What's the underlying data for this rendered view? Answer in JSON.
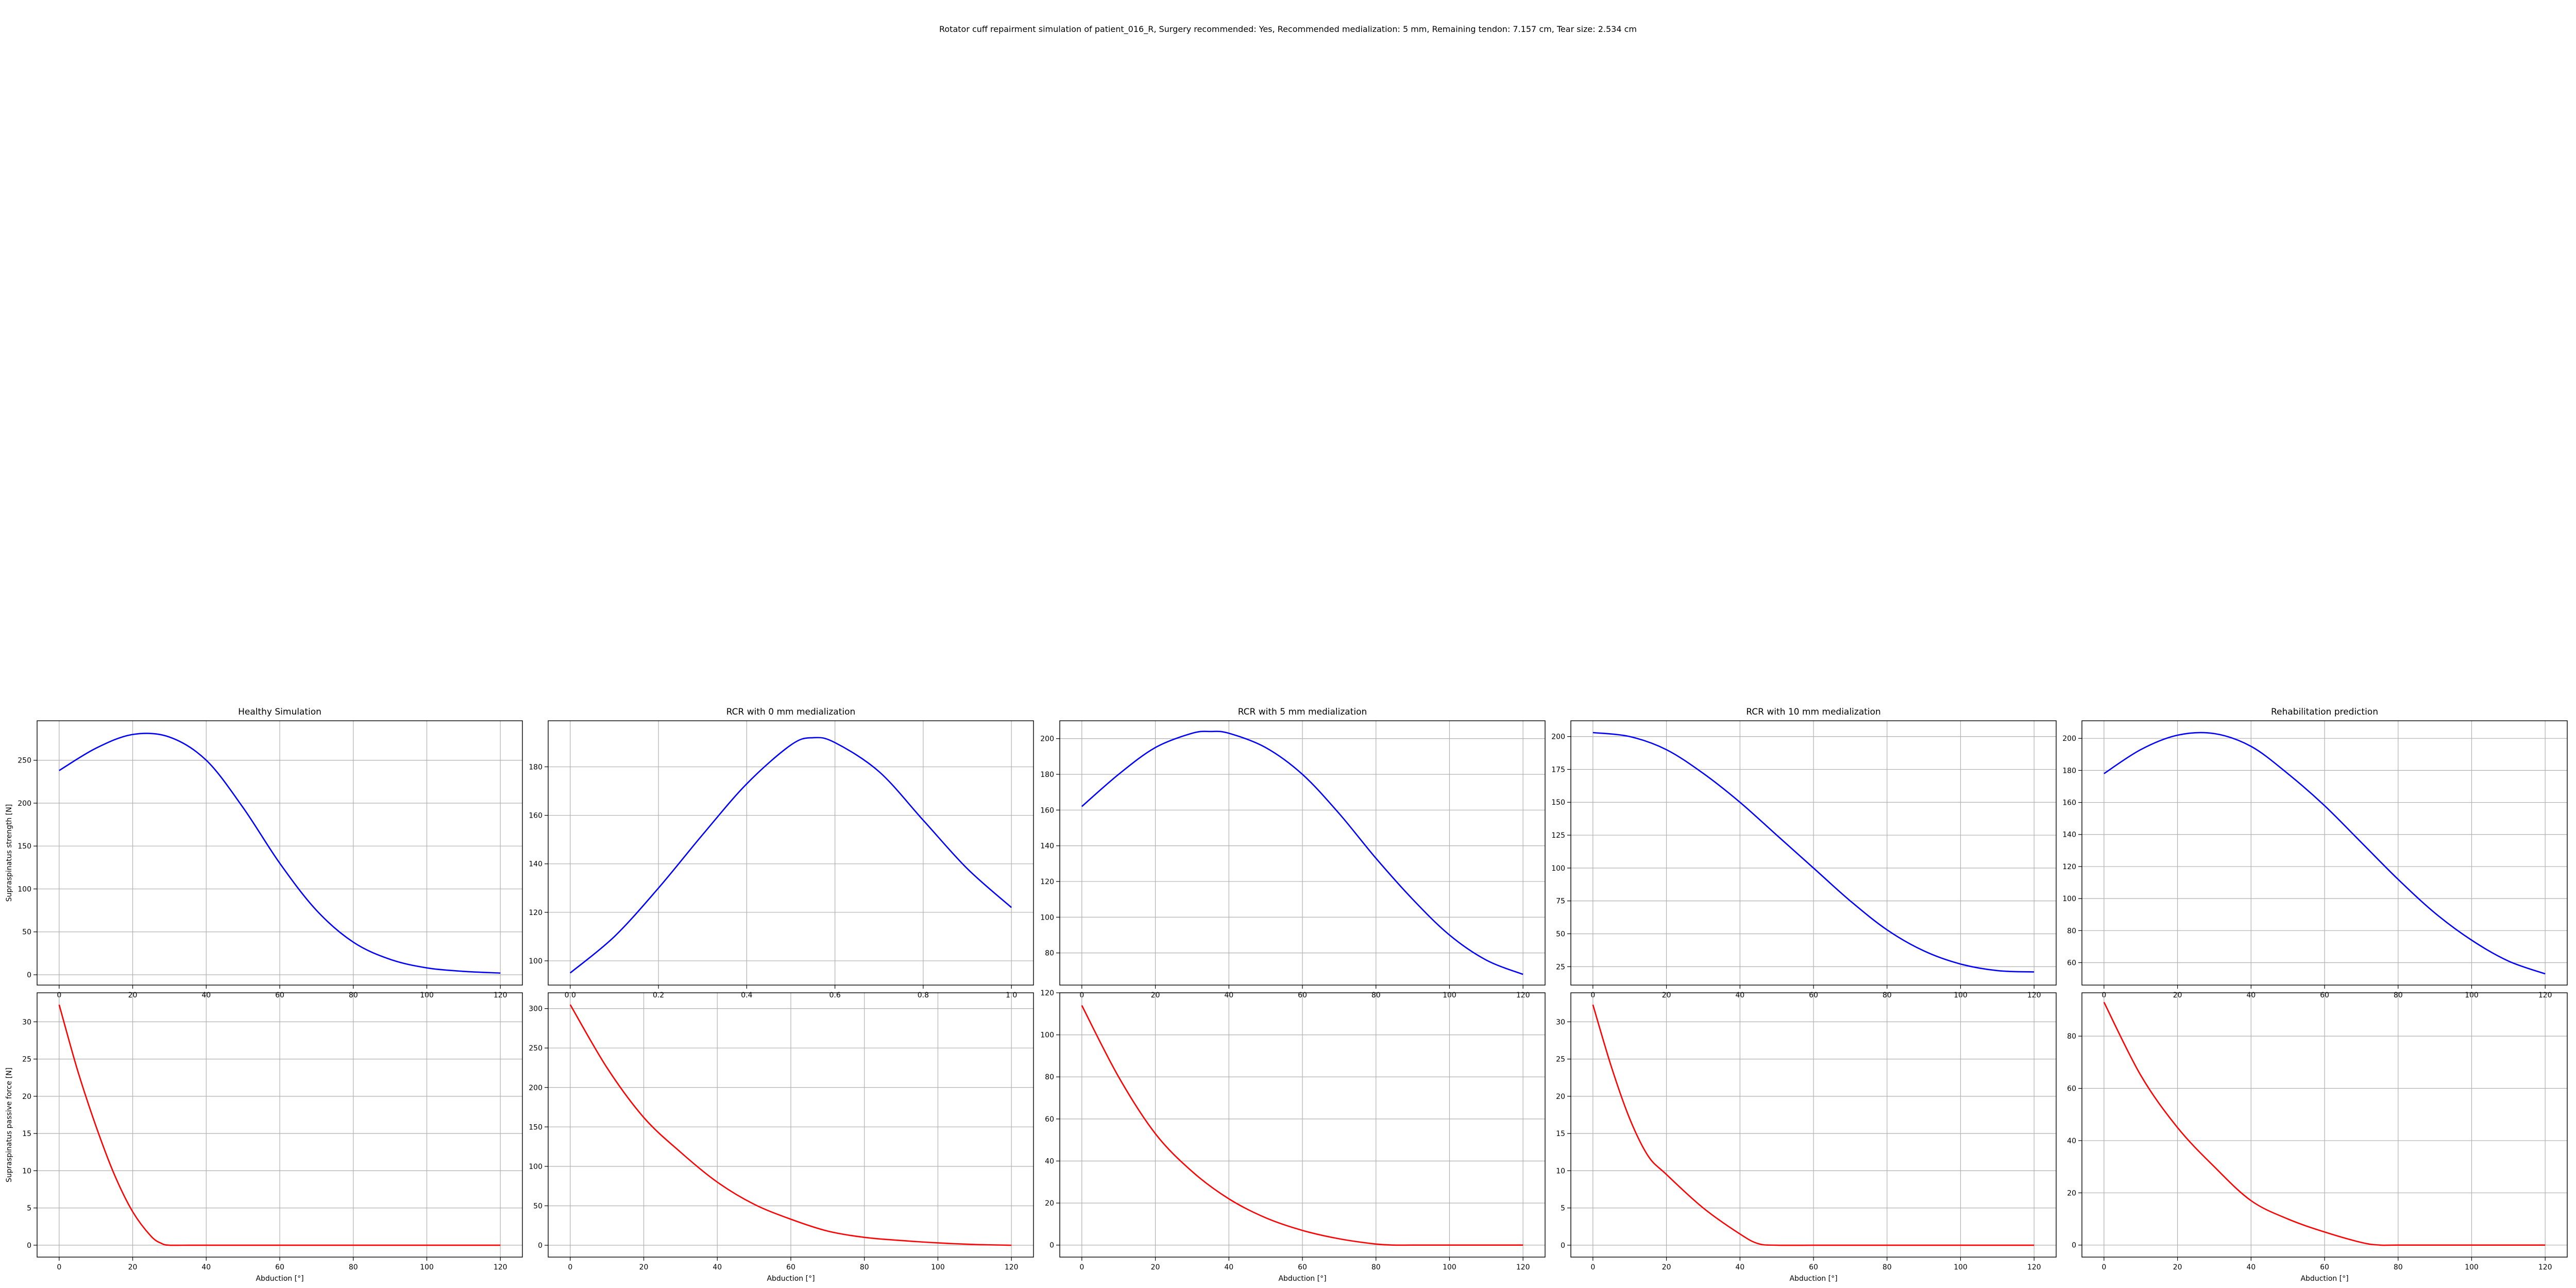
{
  "figure": {
    "suptitle": "Rotator cuff repairment simulation of patient_016_R, Surgery recommended: Yes, Recommended medialization: 5 mm, Remaining tendon: 7.157 cm, Tear size: 2.534 cm"
  },
  "colors": {
    "strength": "#0000ff",
    "passive": "#ff0000",
    "grid": "#b0b0b0",
    "axes": "#000000"
  },
  "chart_data": [
    {
      "type": "line",
      "row": 0,
      "col": 0,
      "title": "Healthy Simulation",
      "xlabel": "",
      "ylabel": "Supraspinatus strength [N]",
      "xlim": [
        -6,
        126
      ],
      "ylim": [
        -12,
        296
      ],
      "grid": true,
      "xticks": [
        0,
        20,
        40,
        60,
        80,
        100,
        120
      ],
      "xtick_labels": [
        "0",
        "20",
        "40",
        "60",
        "80",
        "100",
        "120"
      ],
      "yticks": [
        0,
        50,
        100,
        150,
        200,
        250
      ],
      "ytick_labels": [
        "0",
        "50",
        "100",
        "150",
        "200",
        "250"
      ],
      "series": [
        {
          "color": "#0000ff",
          "x": [
            0,
            10,
            20,
            30,
            40,
            50,
            60,
            70,
            80,
            90,
            100,
            110,
            120
          ],
          "y": [
            238,
            264,
            280,
            277,
            250,
            195,
            130,
            75,
            38,
            18,
            8,
            4,
            2
          ]
        }
      ]
    },
    {
      "type": "line",
      "row": 0,
      "col": 1,
      "title": "RCR with 0 mm medialization",
      "xlabel": "",
      "ylabel": "",
      "xlim": [
        -0.05,
        1.05
      ],
      "ylim": [
        90,
        199
      ],
      "grid": true,
      "xticks": [
        0,
        0.2,
        0.4,
        0.6,
        0.8,
        1.0
      ],
      "xtick_labels": [
        "0.0",
        "0.2",
        "0.4",
        "0.6",
        "0.8",
        "1.0"
      ],
      "yticks": [
        100,
        120,
        140,
        160,
        180
      ],
      "ytick_labels": [
        "100",
        "120",
        "140",
        "160",
        "180"
      ],
      "series": [
        {
          "color": "#0000ff",
          "x": [
            0,
            0.1,
            0.2,
            0.3,
            0.4,
            0.5,
            0.55,
            0.6,
            0.7,
            0.8,
            0.9,
            1.0
          ],
          "y": [
            95,
            110,
            130,
            152,
            173,
            189,
            192,
            190,
            178,
            158,
            138,
            122
          ]
        }
      ]
    },
    {
      "type": "line",
      "row": 0,
      "col": 2,
      "title": "RCR with 5 mm medialization",
      "xlabel": "",
      "ylabel": "",
      "xlim": [
        -6,
        126
      ],
      "ylim": [
        62,
        210
      ],
      "grid": true,
      "xticks": [
        0,
        20,
        40,
        60,
        80,
        100,
        120
      ],
      "xtick_labels": [
        "0",
        "20",
        "40",
        "60",
        "80",
        "100",
        "120"
      ],
      "yticks": [
        80,
        100,
        120,
        140,
        160,
        180,
        200
      ],
      "ytick_labels": [
        "80",
        "100",
        "120",
        "140",
        "160",
        "180",
        "200"
      ],
      "series": [
        {
          "color": "#0000ff",
          "x": [
            0,
            10,
            20,
            30,
            35,
            40,
            50,
            60,
            70,
            80,
            90,
            100,
            110,
            120
          ],
          "y": [
            162,
            180,
            195,
            203,
            204,
            203,
            195,
            180,
            158,
            133,
            110,
            90,
            76,
            68
          ]
        }
      ]
    },
    {
      "type": "line",
      "row": 0,
      "col": 3,
      "title": "RCR with 10 mm medialization",
      "xlabel": "",
      "ylabel": "",
      "xlim": [
        -6,
        126
      ],
      "ylim": [
        11,
        212
      ],
      "grid": true,
      "xticks": [
        0,
        20,
        40,
        60,
        80,
        100,
        120
      ],
      "xtick_labels": [
        "0",
        "20",
        "40",
        "60",
        "80",
        "100",
        "120"
      ],
      "yticks": [
        25,
        50,
        75,
        100,
        125,
        150,
        175,
        200
      ],
      "ytick_labels": [
        "25",
        "50",
        "75",
        "100",
        "125",
        "150",
        "175",
        "200"
      ],
      "series": [
        {
          "color": "#0000ff",
          "x": [
            0,
            10,
            20,
            30,
            40,
            50,
            60,
            70,
            80,
            90,
            100,
            110,
            120
          ],
          "y": [
            203,
            200,
            190,
            172,
            150,
            125,
            100,
            75,
            53,
            37,
            27,
            22,
            21
          ]
        }
      ]
    },
    {
      "type": "line",
      "row": 0,
      "col": 4,
      "title": "Rehabilitation prediction",
      "xlabel": "",
      "ylabel": "",
      "xlim": [
        -6,
        126
      ],
      "ylim": [
        46,
        211
      ],
      "grid": true,
      "xticks": [
        0,
        20,
        40,
        60,
        80,
        100,
        120
      ],
      "xtick_labels": [
        "0",
        "20",
        "40",
        "60",
        "80",
        "100",
        "120"
      ],
      "yticks": [
        60,
        80,
        100,
        120,
        140,
        160,
        180,
        200
      ],
      "ytick_labels": [
        "60",
        "80",
        "100",
        "120",
        "140",
        "160",
        "180",
        "200"
      ],
      "series": [
        {
          "color": "#0000ff",
          "x": [
            0,
            10,
            20,
            30,
            40,
            50,
            60,
            70,
            80,
            90,
            100,
            110,
            120
          ],
          "y": [
            178,
            193,
            202,
            203,
            195,
            178,
            158,
            135,
            112,
            91,
            74,
            61,
            53
          ]
        }
      ]
    },
    {
      "type": "line",
      "row": 1,
      "col": 0,
      "title": "",
      "xlabel": "Abduction [°]",
      "ylabel": "Supraspinatus passive force [N]",
      "xlim": [
        -6,
        126
      ],
      "ylim": [
        -1.6,
        33.9
      ],
      "grid": true,
      "xticks": [
        0,
        20,
        40,
        60,
        80,
        100,
        120
      ],
      "xtick_labels": [
        "0",
        "20",
        "40",
        "60",
        "80",
        "100",
        "120"
      ],
      "yticks": [
        0,
        5,
        10,
        15,
        20,
        25,
        30
      ],
      "ytick_labels": [
        "0",
        "5",
        "10",
        "15",
        "20",
        "25",
        "30"
      ],
      "series": [
        {
          "color": "#ff0000",
          "x": [
            0,
            5,
            10,
            15,
            20,
            25,
            28,
            30,
            35,
            40,
            60,
            80,
            100,
            120
          ],
          "y": [
            32.3,
            23.5,
            16,
            9.5,
            4.5,
            1.2,
            0.2,
            0,
            0,
            0,
            0,
            0,
            0,
            0
          ]
        }
      ]
    },
    {
      "type": "line",
      "row": 1,
      "col": 1,
      "title": "",
      "xlabel": "Abduction [°]",
      "ylabel": "",
      "xlim": [
        -6,
        126
      ],
      "ylim": [
        -15,
        320
      ],
      "grid": true,
      "xticks": [
        0,
        20,
        40,
        60,
        80,
        100,
        120
      ],
      "xtick_labels": [
        "0",
        "20",
        "40",
        "60",
        "80",
        "100",
        "120"
      ],
      "yticks": [
        0,
        50,
        100,
        150,
        200,
        250,
        300
      ],
      "ytick_labels": [
        "0",
        "50",
        "100",
        "150",
        "200",
        "250",
        "300"
      ],
      "series": [
        {
          "color": "#ff0000",
          "x": [
            0,
            10,
            20,
            30,
            40,
            50,
            60,
            70,
            80,
            90,
            100,
            110,
            120
          ],
          "y": [
            305,
            225,
            162,
            118,
            80,
            52,
            33,
            18,
            10,
            6,
            3,
            1,
            0
          ]
        }
      ]
    },
    {
      "type": "line",
      "row": 1,
      "col": 2,
      "title": "",
      "xlabel": "Abduction [°]",
      "ylabel": "",
      "xlim": [
        -6,
        126
      ],
      "ylim": [
        -5.7,
        120
      ],
      "grid": true,
      "xticks": [
        0,
        20,
        40,
        60,
        80,
        100,
        120
      ],
      "xtick_labels": [
        "0",
        "20",
        "40",
        "60",
        "80",
        "100",
        "120"
      ],
      "yticks": [
        0,
        20,
        40,
        60,
        80,
        100,
        120
      ],
      "ytick_labels": [
        "0",
        "20",
        "40",
        "60",
        "80",
        "100",
        "120"
      ],
      "series": [
        {
          "color": "#ff0000",
          "x": [
            0,
            10,
            20,
            30,
            40,
            50,
            60,
            70,
            80,
            85,
            90,
            100,
            110,
            120
          ],
          "y": [
            114,
            80,
            53,
            35,
            22,
            13,
            7,
            3,
            0.5,
            0,
            0,
            0,
            0,
            0
          ]
        }
      ]
    },
    {
      "type": "line",
      "row": 1,
      "col": 3,
      "title": "",
      "xlabel": "Abduction [°]",
      "ylabel": "",
      "xlim": [
        -6,
        126
      ],
      "ylim": [
        -1.6,
        33.9
      ],
      "grid": true,
      "xticks": [
        0,
        20,
        40,
        60,
        80,
        100,
        120
      ],
      "xtick_labels": [
        "0",
        "20",
        "40",
        "60",
        "80",
        "100",
        "120"
      ],
      "yticks": [
        0,
        5,
        10,
        15,
        20,
        25,
        30
      ],
      "ytick_labels": [
        "0",
        "5",
        "10",
        "15",
        "20",
        "25",
        "30"
      ],
      "series": [
        {
          "color": "#ff0000",
          "x": [
            0,
            5,
            10,
            15,
            20,
            30,
            40,
            45,
            50,
            60,
            80,
            100,
            120
          ],
          "y": [
            32.3,
            24,
            17,
            12,
            9.5,
            5,
            1.5,
            0.2,
            0,
            0,
            0,
            0,
            0
          ]
        }
      ]
    },
    {
      "type": "line",
      "row": 1,
      "col": 4,
      "title": "",
      "xlabel": "Abduction [°]",
      "ylabel": "",
      "xlim": [
        -6,
        126
      ],
      "ylim": [
        -4.6,
        96.6
      ],
      "grid": true,
      "xticks": [
        0,
        20,
        40,
        60,
        80,
        100,
        120
      ],
      "xtick_labels": [
        "0",
        "20",
        "40",
        "60",
        "80",
        "100",
        "120"
      ],
      "yticks": [
        0,
        20,
        40,
        60,
        80
      ],
      "ytick_labels": [
        "0",
        "20",
        "40",
        "60",
        "80"
      ],
      "series": [
        {
          "color": "#ff0000",
          "x": [
            0,
            10,
            20,
            30,
            40,
            50,
            60,
            70,
            75,
            80,
            100,
            120
          ],
          "y": [
            93,
            65,
            45,
            30,
            17,
            10,
            5,
            1,
            0,
            0,
            0,
            0
          ]
        }
      ]
    }
  ]
}
